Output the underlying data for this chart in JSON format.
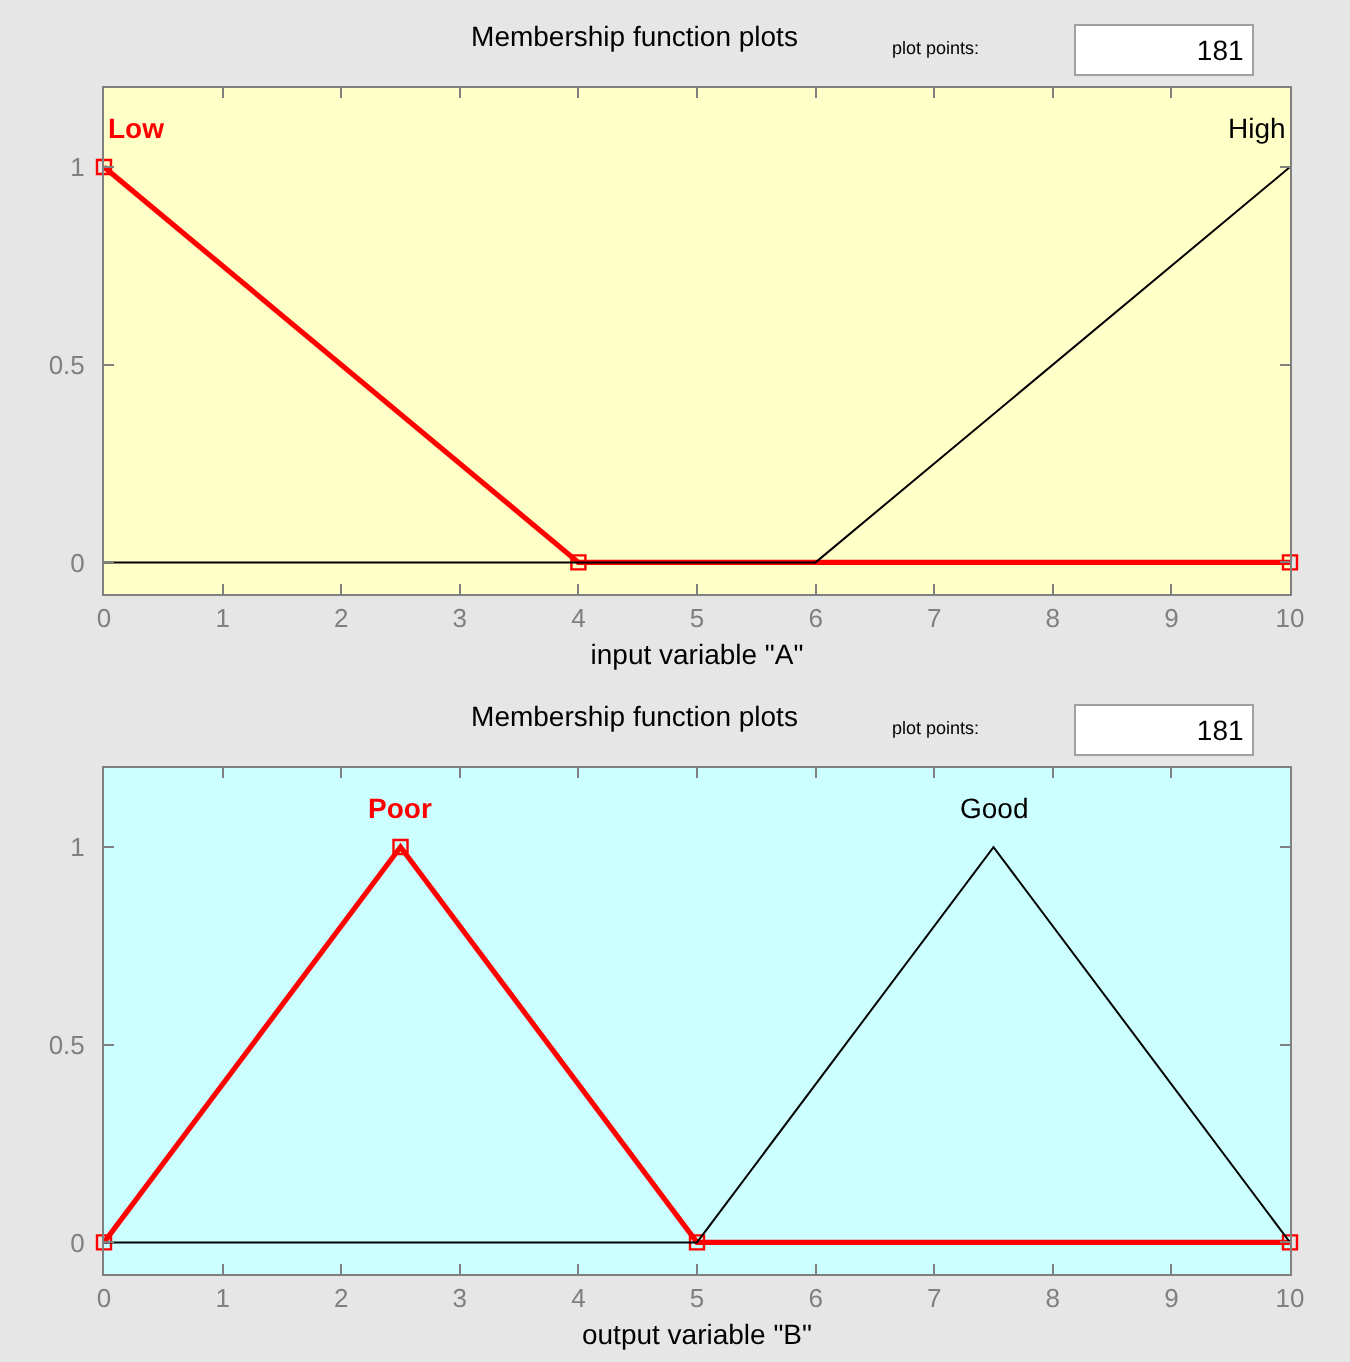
{
  "chart_data": [
    {
      "type": "line",
      "title": "Membership function plots",
      "xlabel": "input variable \"A\"",
      "xlim": [
        0,
        10
      ],
      "ylim": [
        -0.08,
        1.2
      ],
      "xticks": [
        0,
        1,
        2,
        3,
        4,
        5,
        6,
        7,
        8,
        9,
        10
      ],
      "yticks": [
        0,
        0.5,
        1
      ],
      "grid": false,
      "legend": false,
      "series": [
        {
          "name": "Low",
          "color": "#ff0000",
          "x": [
            0,
            4,
            10
          ],
          "values": [
            1,
            0,
            0
          ],
          "marker": "square"
        },
        {
          "name": "High",
          "color": "#000000",
          "x": [
            0,
            6,
            10
          ],
          "values": [
            0,
            0,
            1
          ]
        }
      ],
      "annotations": [
        "plot points:",
        "181"
      ]
    },
    {
      "type": "line",
      "title": "Membership function plots",
      "xlabel": "output variable \"B\"",
      "xlim": [
        0,
        10
      ],
      "ylim": [
        -0.08,
        1.2
      ],
      "xticks": [
        0,
        1,
        2,
        3,
        4,
        5,
        6,
        7,
        8,
        9,
        10
      ],
      "yticks": [
        0,
        0.5,
        1
      ],
      "grid": false,
      "legend": false,
      "series": [
        {
          "name": "Poor",
          "color": "#ff0000",
          "x": [
            0,
            2.5,
            5,
            10
          ],
          "values": [
            0,
            1,
            0,
            0
          ],
          "marker": "square"
        },
        {
          "name": "Good",
          "color": "#000000",
          "x": [
            0,
            5,
            7.5,
            10
          ],
          "values": [
            0,
            0,
            1,
            0
          ]
        }
      ],
      "annotations": [
        "plot points:",
        "181"
      ]
    }
  ]
}
